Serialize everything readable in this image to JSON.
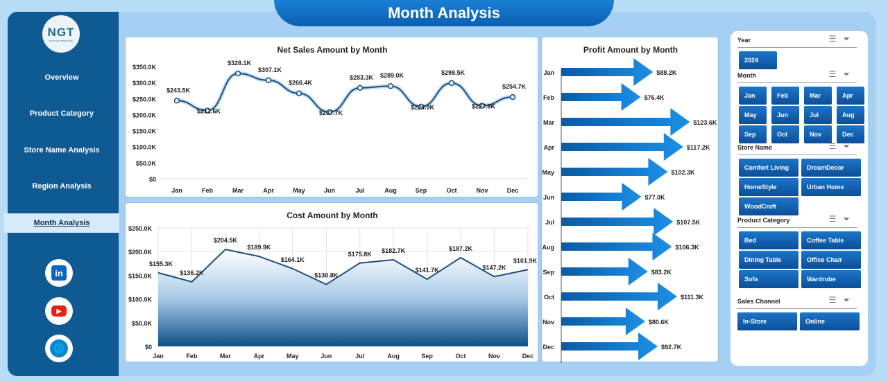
{
  "title": "Month Analysis",
  "logo": {
    "text": "NGT",
    "tagline": "NEXT GEN TEMPLATES"
  },
  "nav": [
    {
      "label": "Overview"
    },
    {
      "label": "Product Category"
    },
    {
      "label": "Store Name Analysis"
    },
    {
      "label": "Region Analysis"
    },
    {
      "label": "Month Analysis",
      "active": true
    }
  ],
  "social": [
    {
      "icon": "linkedin-icon",
      "glyph": "in",
      "color": "#0a66c2"
    },
    {
      "icon": "youtube-icon",
      "glyph": "▶",
      "color": "#e62117"
    },
    {
      "icon": "globe-icon",
      "glyph": "🌐",
      "color": "#0a86c9"
    }
  ],
  "colors": {
    "sidebar": "#0f5a93",
    "accent": "#1a7fd6",
    "line": "#1f4e79"
  },
  "chart_data": [
    {
      "type": "line",
      "title": "Net Sales Amount by Month",
      "categories": [
        "Jan",
        "Feb",
        "Mar",
        "Apr",
        "May",
        "Jun",
        "Jul",
        "Aug",
        "Sep",
        "Oct",
        "Nov",
        "Dec"
      ],
      "values": [
        243.5,
        212.6,
        328.1,
        307.1,
        266.4,
        207.7,
        283.3,
        289.0,
        224.9,
        298.5,
        227.8,
        254.7
      ],
      "labels": [
        "$243.5K",
        "$212.6K",
        "$328.1K",
        "$307.1K",
        "$266.4K",
        "$207.7K",
        "$283.3K",
        "$289.0K",
        "$224.9K",
        "$298.5K",
        "$227.8K",
        "$254.7K"
      ],
      "yticks": [
        "$0",
        "$50.0K",
        "$100.0K",
        "$150.0K",
        "$200.0K",
        "$250.0K",
        "$300.0K",
        "$350.0K"
      ],
      "ylim": [
        0,
        350
      ],
      "unit": "$K",
      "grid": false
    },
    {
      "type": "area",
      "title": "Cost Amount by Month",
      "categories": [
        "Jan",
        "Feb",
        "Mar",
        "Apr",
        "May",
        "Jun",
        "Jul",
        "Aug",
        "Sep",
        "Oct",
        "Nov",
        "Dec"
      ],
      "values": [
        155.3,
        136.2,
        204.5,
        189.9,
        164.1,
        130.8,
        175.8,
        182.7,
        141.7,
        187.2,
        147.2,
        161.9
      ],
      "labels": [
        "$155.3K",
        "$136.2K",
        "$204.5K",
        "$189.9K",
        "$164.1K",
        "$130.8K",
        "$175.8K",
        "$182.7K",
        "$141.7K",
        "$187.2K",
        "$147.2K",
        "$161.9K"
      ],
      "yticks": [
        "$0",
        "$50.0K",
        "$100.0K",
        "$150.0K",
        "$200.0K",
        "$250.0K"
      ],
      "ylim": [
        0,
        250
      ],
      "unit": "$K",
      "grid": true
    },
    {
      "type": "bar",
      "orientation": "horizontal",
      "title": "Profit Amount by Month",
      "categories": [
        "Jan",
        "Feb",
        "Mar",
        "Apr",
        "May",
        "Jun",
        "Jul",
        "Aug",
        "Sep",
        "Oct",
        "Nov",
        "Dec"
      ],
      "values": [
        88.2,
        76.4,
        123.6,
        117.2,
        102.3,
        77.0,
        107.5,
        106.3,
        83.2,
        111.3,
        80.6,
        92.7
      ],
      "labels": [
        "$88.2K",
        "$76.4K",
        "$123.6K",
        "$117.2K",
        "$102.3K",
        "$77.0K",
        "$107.5K",
        "$106.3K",
        "$83.2K",
        "$111.3K",
        "$80.6K",
        "$92.7K"
      ],
      "unit": "$K"
    }
  ],
  "slicers": {
    "year": {
      "title": "Year",
      "items": [
        "2024"
      ]
    },
    "month": {
      "title": "Month",
      "items": [
        "Jan",
        "Feb",
        "Mar",
        "Apr",
        "May",
        "Jun",
        "Jul",
        "Aug",
        "Sep",
        "Oct",
        "Nov",
        "Dec"
      ]
    },
    "store": {
      "title": "Store Name",
      "items": [
        "Comfort Living",
        "DreamDecor",
        "HomeStyle",
        "Urban Home",
        "WoodCraft"
      ]
    },
    "category": {
      "title": "Product Category",
      "items": [
        "Bed",
        "Coffee Table",
        "Dining Table",
        "Office Chair",
        "Sofa",
        "Wardrobe"
      ]
    },
    "channel": {
      "title": "Sales Channel",
      "items": [
        "In-Store",
        "Online"
      ]
    }
  }
}
